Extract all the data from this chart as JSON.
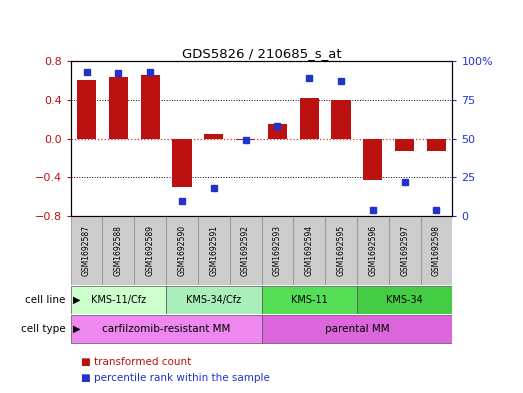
{
  "title": "GDS5826 / 210685_s_at",
  "samples": [
    "GSM1692587",
    "GSM1692588",
    "GSM1692589",
    "GSM1692590",
    "GSM1692591",
    "GSM1692592",
    "GSM1692593",
    "GSM1692594",
    "GSM1692595",
    "GSM1692596",
    "GSM1692597",
    "GSM1692598"
  ],
  "transformed_count": [
    0.6,
    0.63,
    0.65,
    -0.5,
    0.05,
    -0.02,
    0.15,
    0.42,
    0.4,
    -0.43,
    -0.13,
    -0.13
  ],
  "percentile_rank": [
    93,
    92,
    93,
    10,
    18,
    49,
    58,
    89,
    87,
    4,
    22,
    4
  ],
  "ylim_left": [
    -0.8,
    0.8
  ],
  "ylim_right": [
    0,
    100
  ],
  "yticks_left": [
    -0.8,
    -0.4,
    0.0,
    0.4,
    0.8
  ],
  "yticks_right": [
    0,
    25,
    50,
    75,
    100
  ],
  "bar_color": "#bb1111",
  "dot_color": "#2233cc",
  "zero_line_color": "#dd3333",
  "grid_color": "#000000",
  "cell_line_groups": [
    {
      "label": "KMS-11/Cfz",
      "start": 0,
      "end": 3,
      "color": "#ccffcc"
    },
    {
      "label": "KMS-34/Cfz",
      "start": 3,
      "end": 6,
      "color": "#aaeebb"
    },
    {
      "label": "KMS-11",
      "start": 6,
      "end": 9,
      "color": "#55dd55"
    },
    {
      "label": "KMS-34",
      "start": 9,
      "end": 12,
      "color": "#44cc44"
    }
  ],
  "cell_type_groups": [
    {
      "label": "carfilzomib-resistant MM",
      "start": 0,
      "end": 6,
      "color": "#ee88ee"
    },
    {
      "label": "parental MM",
      "start": 6,
      "end": 12,
      "color": "#dd66dd"
    }
  ],
  "sample_bg_color": "#cccccc",
  "sample_border_color": "#888888"
}
